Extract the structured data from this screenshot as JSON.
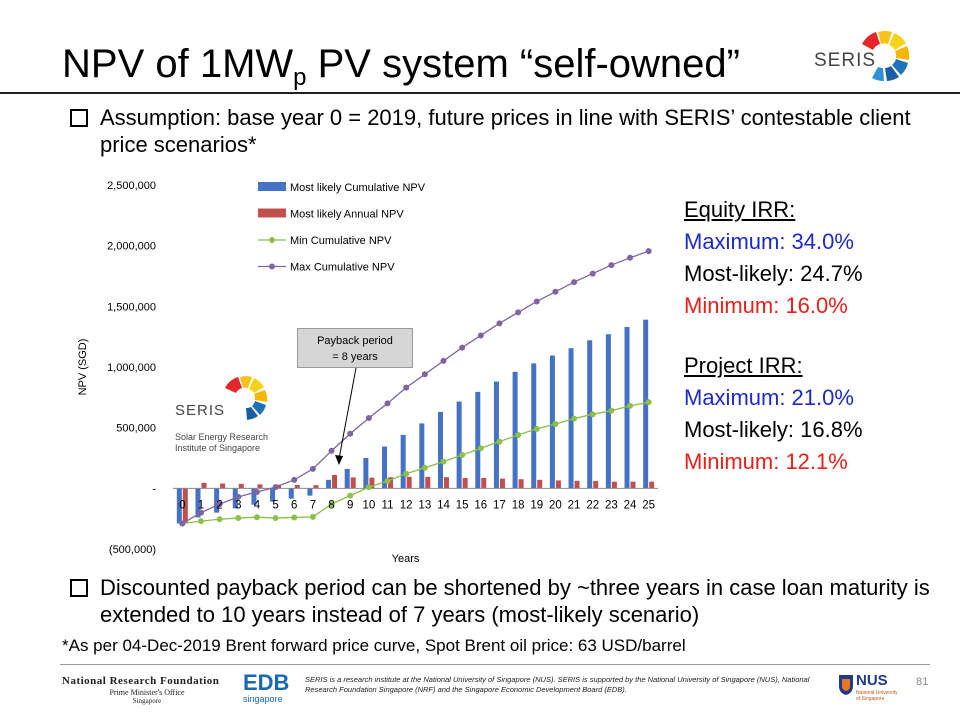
{
  "slide": {
    "title_main": "NPV of 1MW",
    "title_sub": "p",
    "title_rest": " PV system “self-owned”",
    "bullet1": "Assumption: base year 0 = 2019, future prices in line with SERIS’ contestable client price scenarios*",
    "bullet2": "Discounted payback period can be shortened by ~three years in case loan maturity is extended to 10 years instead of 7 years (most-likely scenario)",
    "footnote": "*As per 04-Dec-2019 Brent forward price curve, Spot Brent oil price: 63 USD/barrel",
    "page_number": "81",
    "logo_text": "SERIS",
    "chart_logo_text": "SERIS",
    "chart_logo_sub1": "Solar Energy Research",
    "chart_logo_sub2": "Institute of Singapore"
  },
  "irr": {
    "equity_head": "Equity IRR:",
    "equity_max": "Maximum: 34.0%",
    "equity_likely": "Most-likely: 24.7%",
    "equity_min": "Minimum: 16.0%",
    "project_head": "Project IRR:",
    "project_max": "Maximum: 21.0%",
    "project_likely": "Most-likely: 16.8%",
    "project_min": "Minimum: 12.1%"
  },
  "annotation": {
    "payback_line1": "Payback period",
    "payback_line2": "= 8 years"
  },
  "footer": {
    "nrf_line1": "National Research Foundation",
    "nrf_line2": "Prime Minister's Office",
    "nrf_line3": "Singapore",
    "edb_main": "EDB",
    "edb_sub": "singapore",
    "nus_main": "NUS",
    "nus_sub": "National University of Singapore",
    "disclaimer": "SERIS is a research institute at the National University of Singapore (NUS). SERIS is supported by the National University of Singapore (NUS), National Research Foundation Singapore (NRF) and the Singapore Economic Development Board (EDB)."
  },
  "colors": {
    "blue_text": "#1f29c9",
    "red_text": "#e8201a",
    "bar_blue": "#4472c4",
    "bar_red": "#c0504d",
    "line_green": "#8cc04a",
    "line_purple": "#8064a2"
  },
  "chart_data": {
    "type": "bar",
    "categories": [
      "0",
      "1",
      "2",
      "3",
      "4",
      "5",
      "6",
      "7",
      "8",
      "9",
      "10",
      "11",
      "12",
      "13",
      "14",
      "15",
      "16",
      "17",
      "18",
      "19",
      "20",
      "21",
      "22",
      "23",
      "24",
      "25"
    ],
    "ylabel": "NPV (SGD)",
    "xlabel": "Years",
    "ylim": [
      -500000,
      2500000
    ],
    "yticks": [
      {
        "value": 2500000,
        "label": "2,500,000"
      },
      {
        "value": 2000000,
        "label": "2,000,000"
      },
      {
        "value": 1500000,
        "label": "1,500,000"
      },
      {
        "value": 1000000,
        "label": "1,000,000"
      },
      {
        "value": 500000,
        "label": "500,000"
      },
      {
        "value": 0,
        "label": "-"
      },
      {
        "value": -500000,
        "label": "(500,000)"
      }
    ],
    "legend_position": "top-left",
    "series": [
      {
        "name": "Most likely Cumulative NPV",
        "kind": "bar",
        "color": "#4472c4",
        "values": [
          -290000,
          -240000,
          -200000,
          -165000,
          -135000,
          -110000,
          -85000,
          -60000,
          70000,
          160000,
          250000,
          345000,
          440000,
          535000,
          630000,
          715000,
          795000,
          880000,
          960000,
          1030000,
          1095000,
          1155000,
          1220000,
          1270000,
          1330000,
          1390000
        ]
      },
      {
        "name": "Most likely Annual NPV",
        "kind": "bar",
        "color": "#c0504d",
        "values": [
          -290000,
          45000,
          40000,
          37000,
          33000,
          30000,
          28000,
          26000,
          110000,
          90000,
          88000,
          92000,
          95000,
          95000,
          92000,
          85000,
          85000,
          80000,
          75000,
          70000,
          65000,
          62000,
          60000,
          55000,
          55000,
          55000
        ]
      },
      {
        "name": "Min Cumulative NPV",
        "kind": "line",
        "color": "#8cc04a",
        "values": [
          -290000,
          -270000,
          -255000,
          -245000,
          -238000,
          -245000,
          -240000,
          -235000,
          -130000,
          -60000,
          10000,
          60000,
          120000,
          170000,
          220000,
          275000,
          330000,
          385000,
          440000,
          490000,
          530000,
          575000,
          610000,
          640000,
          680000,
          710000
        ]
      },
      {
        "name": "Max Cumulative NPV",
        "kind": "line",
        "color": "#8064a2",
        "values": [
          -290000,
          -200000,
          -130000,
          -70000,
          -30000,
          10000,
          70000,
          160000,
          310000,
          450000,
          580000,
          700000,
          830000,
          940000,
          1050000,
          1160000,
          1260000,
          1360000,
          1450000,
          1540000,
          1620000,
          1700000,
          1770000,
          1840000,
          1900000,
          1955000
        ]
      }
    ]
  }
}
